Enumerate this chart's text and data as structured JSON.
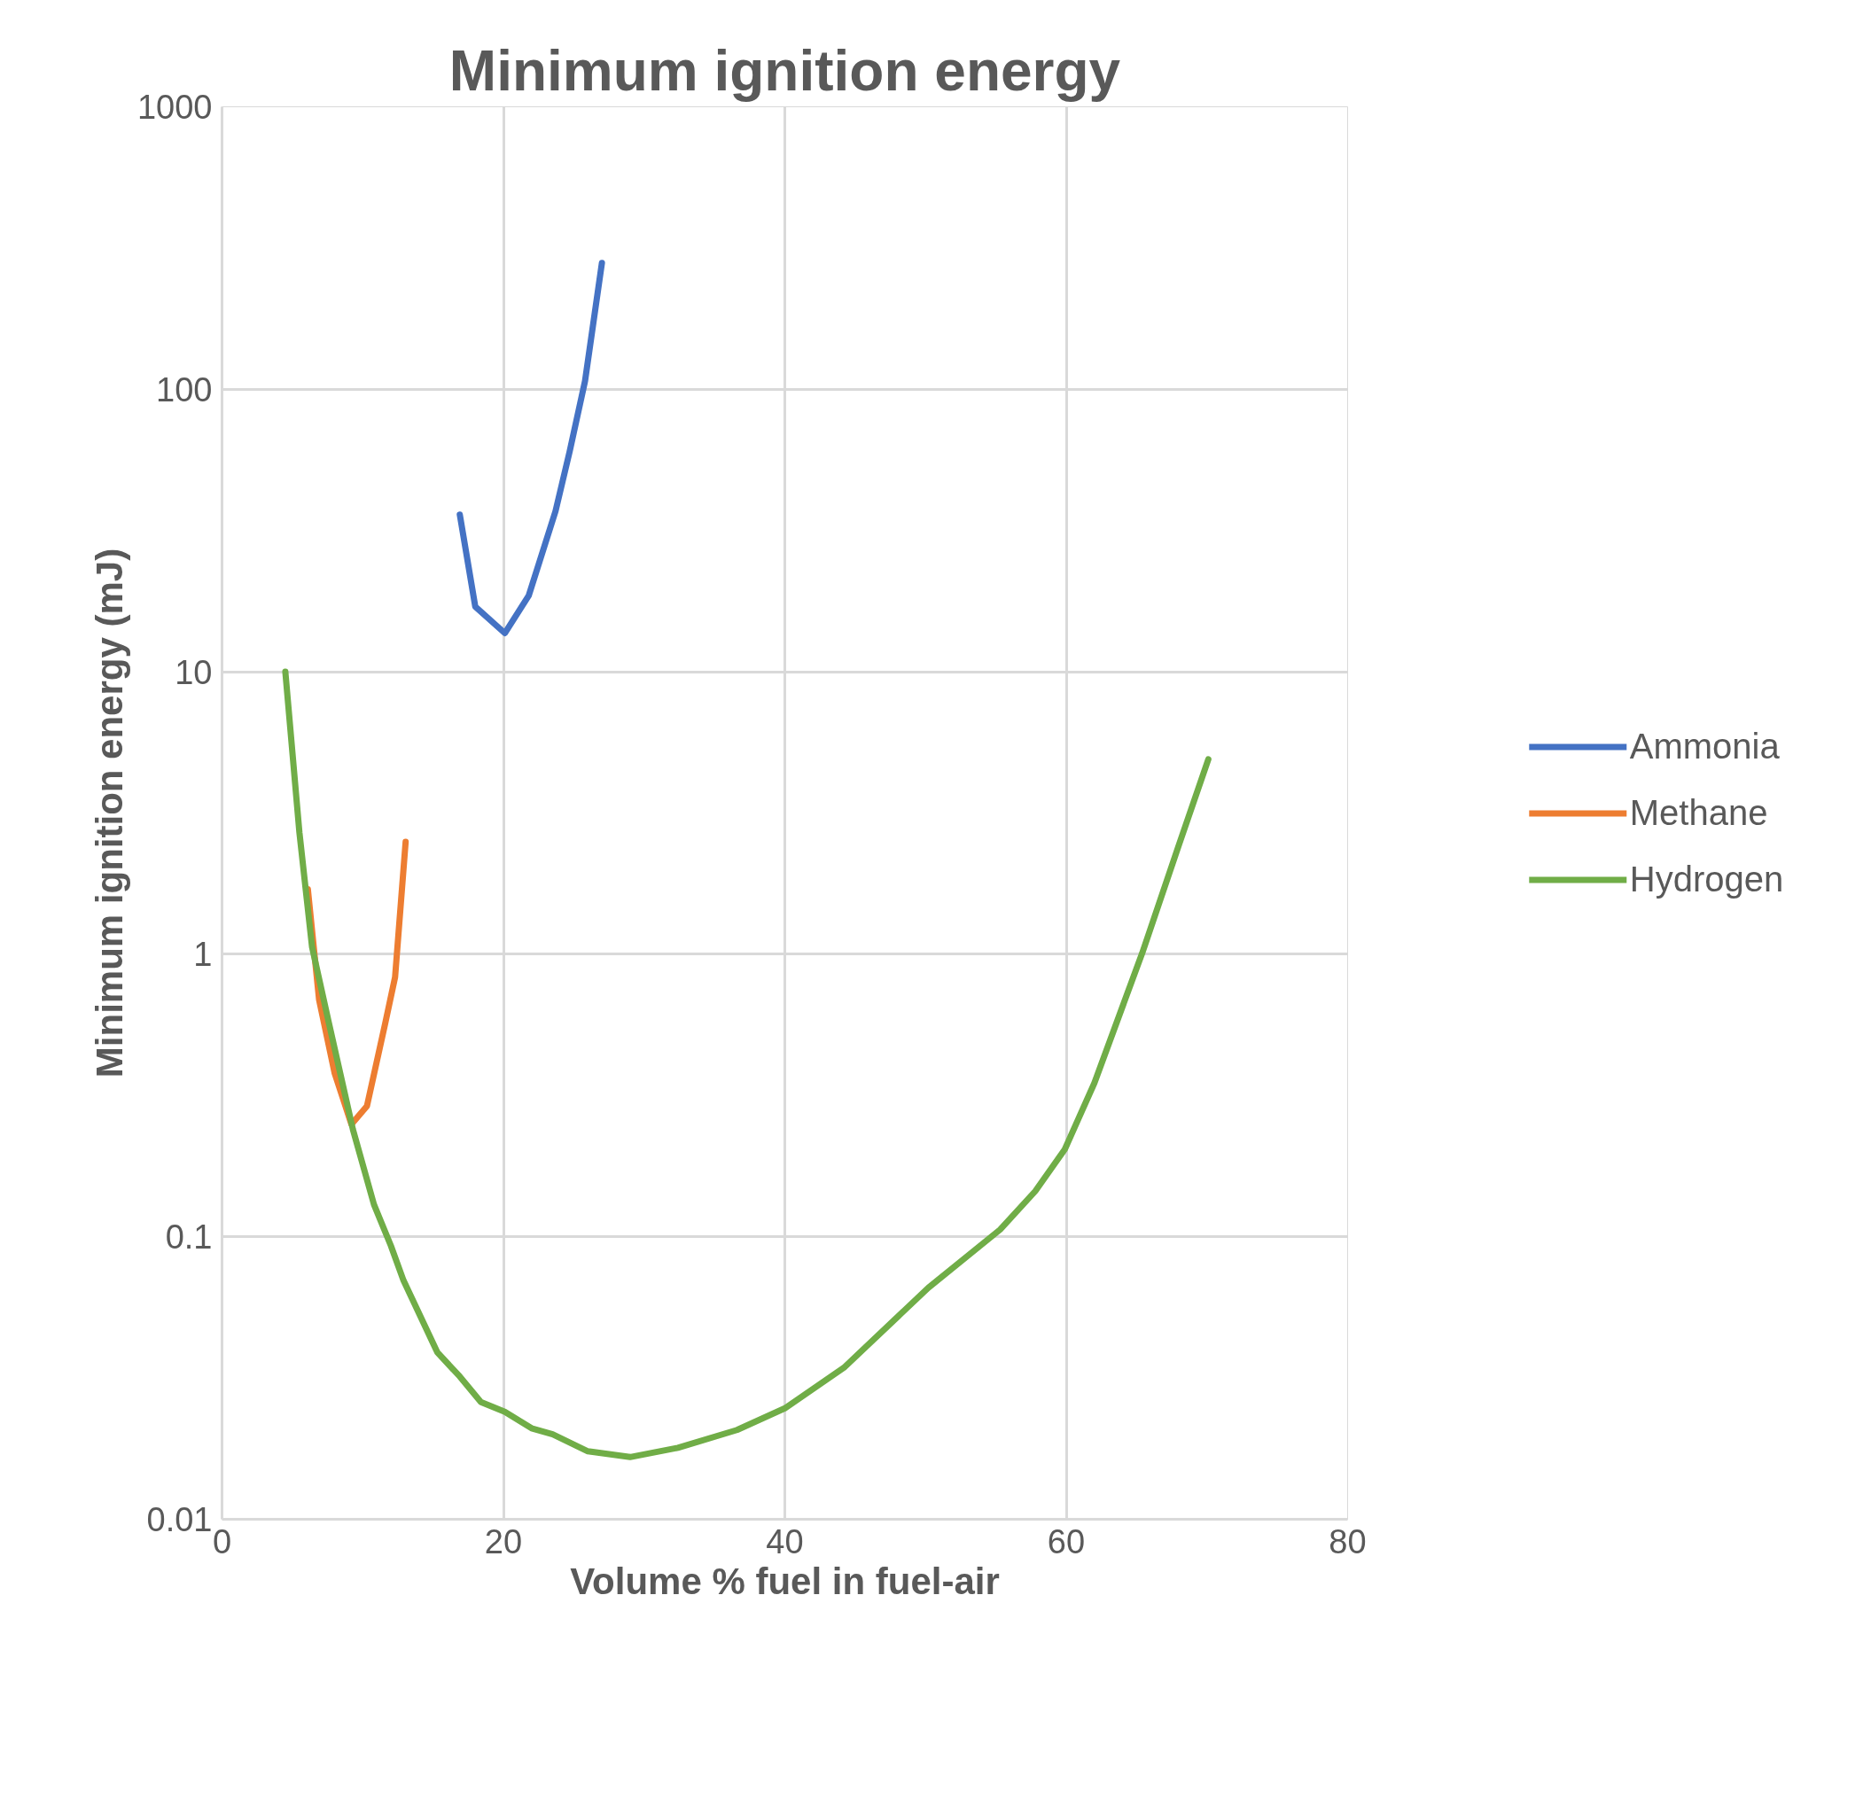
{
  "chart_data": {
    "type": "line",
    "title": "Minimum ignition energy",
    "xlabel": "Volume % fuel in fuel-air",
    "ylabel": "Minimum ignition energy (mJ)",
    "xlim": [
      0,
      80
    ],
    "xticks": [
      0,
      20,
      40,
      60,
      80
    ],
    "ylim": [
      0.01,
      1000
    ],
    "yticks": [
      0.01,
      0.1,
      1,
      10,
      100,
      1000
    ],
    "log": "y",
    "grid": true,
    "legend": "right",
    "line_style": "solid",
    "marker": "none",
    "series": [
      {
        "name": "Ammonia",
        "color": "#4472c4",
        "x": [
          16.9,
          18.0,
          20.1,
          21.8,
          23.7,
          24.7,
          25.8,
          27.0
        ],
        "values": [
          36,
          17,
          13.7,
          18.6,
          37,
          60,
          107,
          280
        ]
      },
      {
        "name": "Methane",
        "color": "#ed7d31",
        "x": [
          6.1,
          6.9,
          8.0,
          9.2,
          10.3,
          11.6,
          12.3,
          13.05
        ],
        "values": [
          1.7,
          0.69,
          0.38,
          0.25,
          0.29,
          0.57,
          0.83,
          2.5
        ]
      },
      {
        "name": "Hydrogen",
        "color": "#70ad47",
        "x": [
          4.5,
          5.5,
          6.4,
          7.6,
          9.3,
          10.8,
          12.0,
          12.9,
          15.3,
          16.9,
          18.4,
          20.1,
          22.0,
          23.5,
          26.0,
          29.0,
          32.4,
          36.6,
          40.0,
          44.2,
          50.2,
          55.3,
          57.8,
          59.9,
          62.0,
          65.4,
          68.0,
          70.1
        ],
        "values": [
          10,
          2.7,
          1.06,
          0.57,
          0.24,
          0.13,
          0.093,
          0.07,
          0.039,
          0.032,
          0.026,
          0.024,
          0.021,
          0.02,
          0.0174,
          0.0166,
          0.0179,
          0.0207,
          0.0247,
          0.0344,
          0.066,
          0.106,
          0.145,
          0.204,
          0.35,
          1.01,
          2.43,
          4.9
        ]
      }
    ]
  }
}
